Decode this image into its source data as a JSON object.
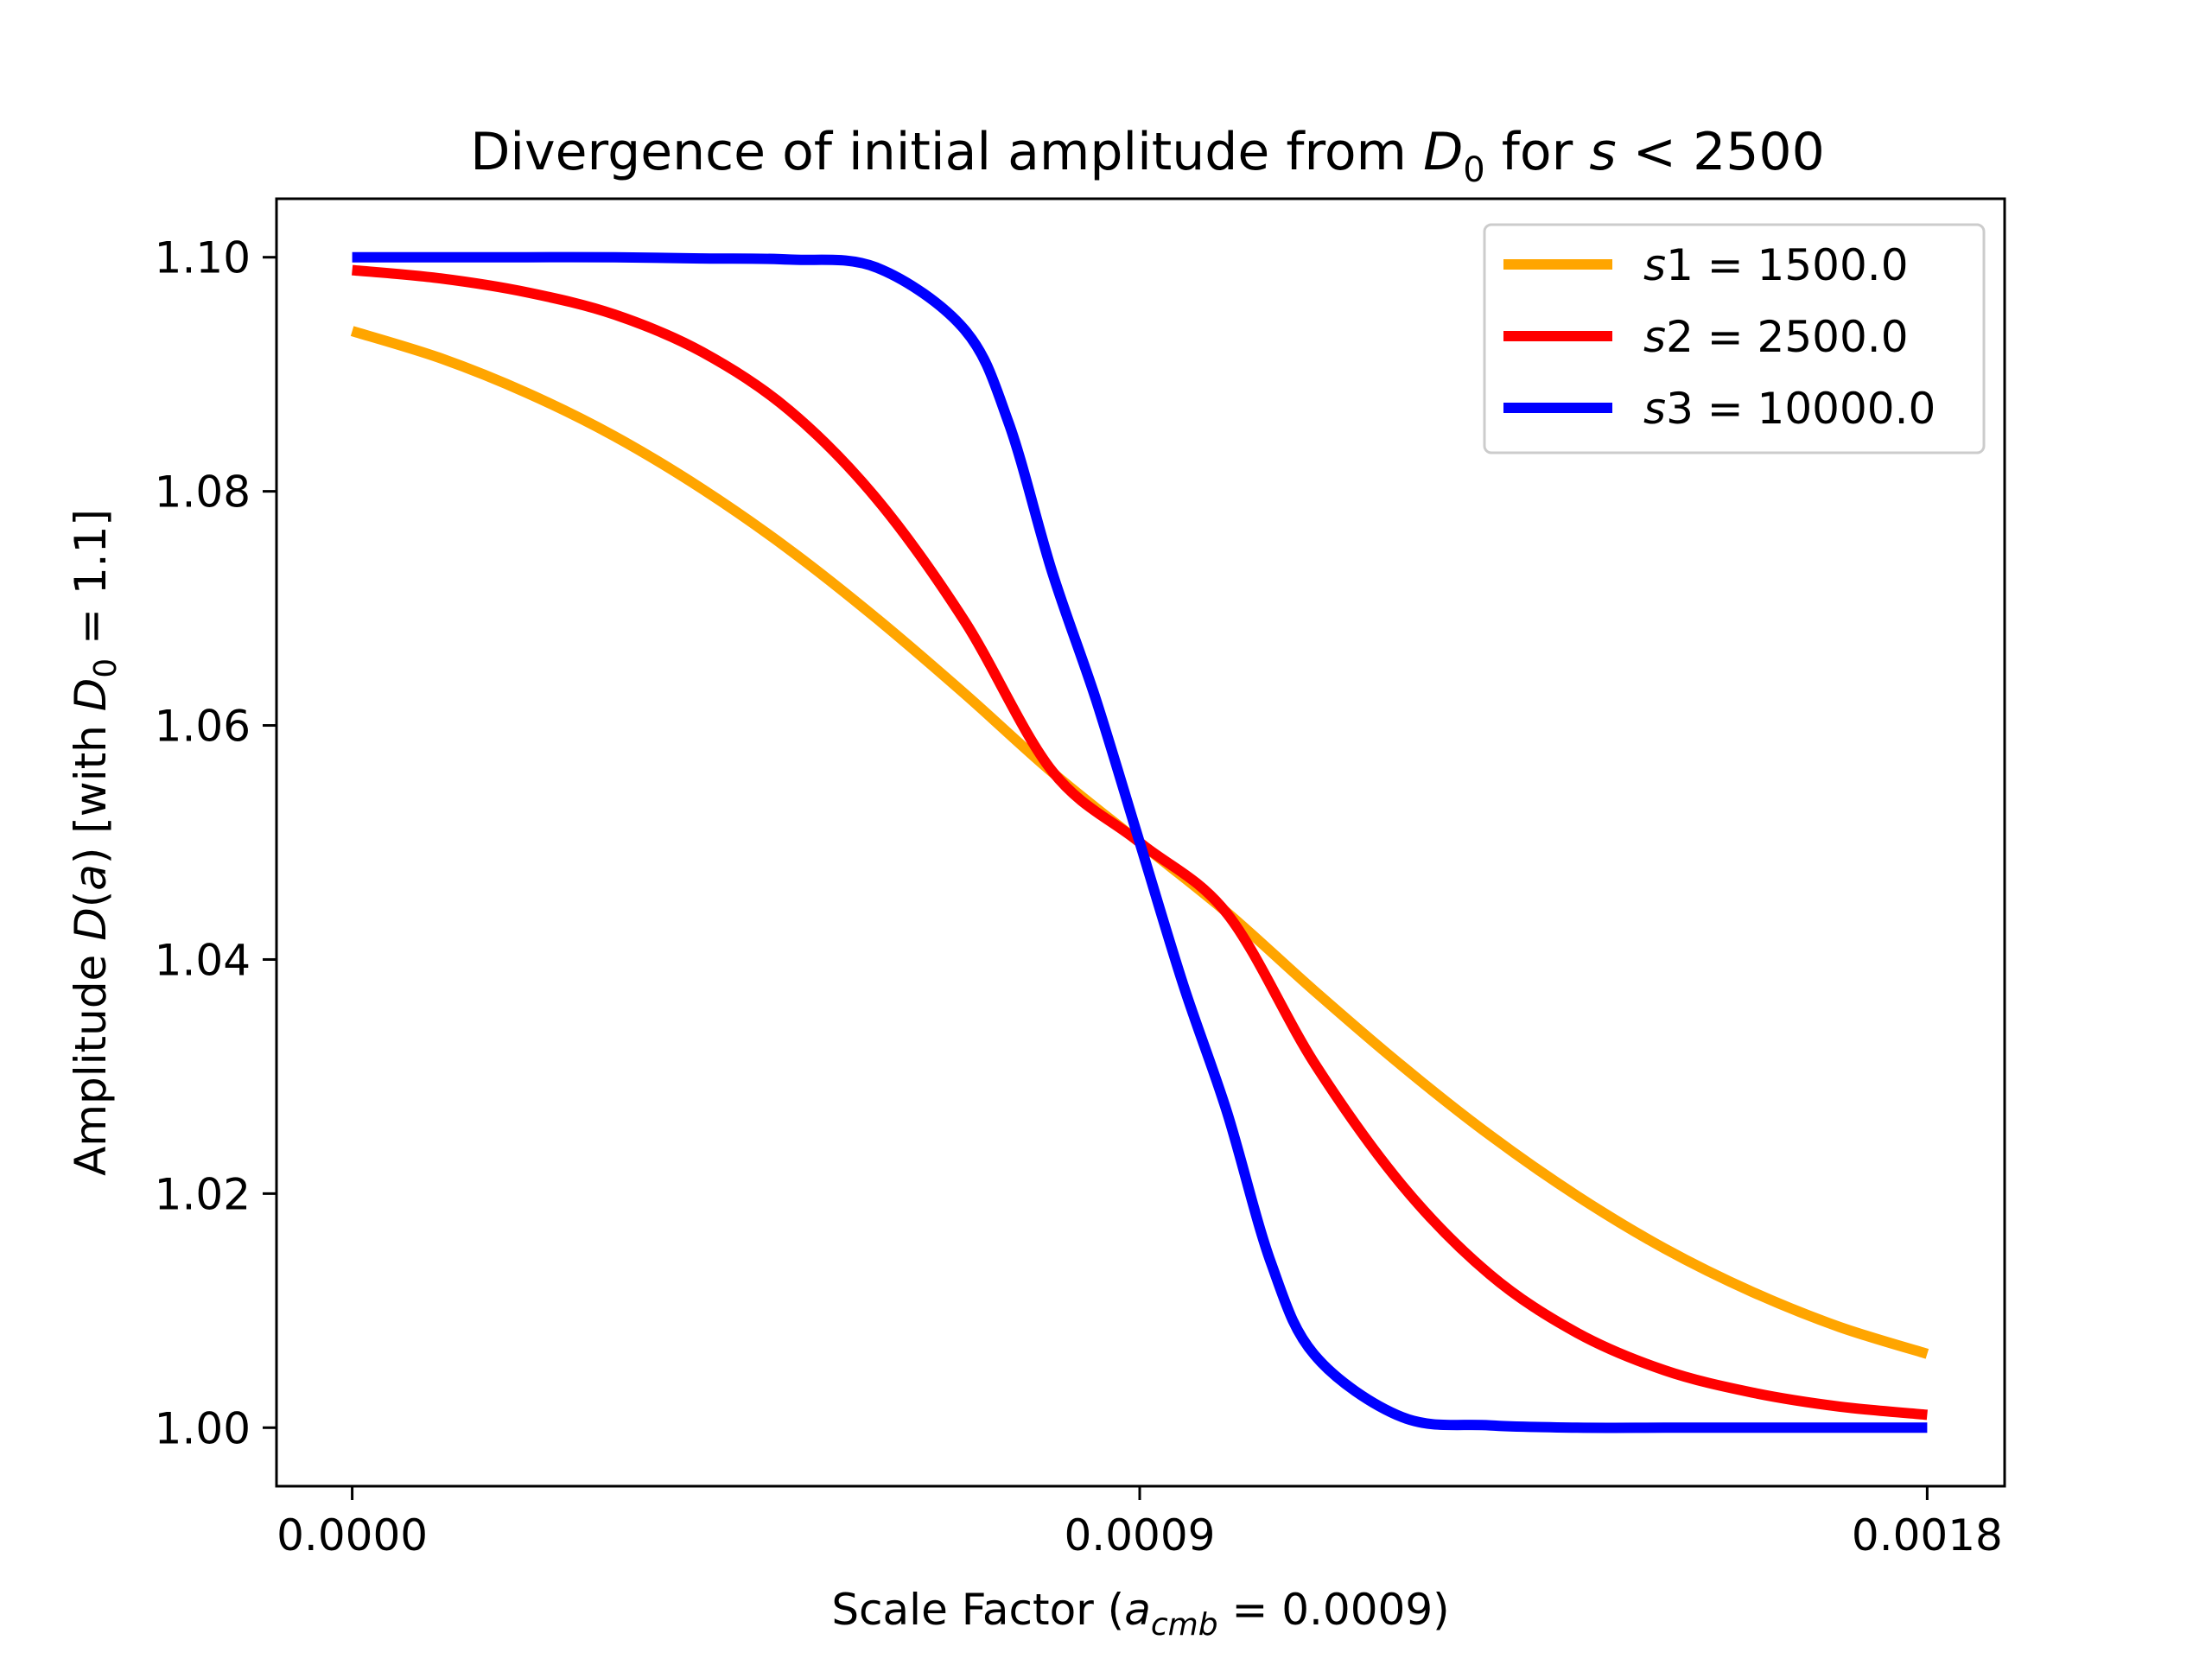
{
  "chart_data": {
    "type": "line",
    "title": {
      "pre": "Divergence of initial amplitude from ",
      "d": "D",
      "d_sub": "0",
      "mid": " for ",
      "s": "s",
      "post": " < 2500"
    },
    "xlabel": {
      "pre": "Scale Factor (",
      "a": "a",
      "a_sub": "cmb",
      "post": "  =  0.0009)"
    },
    "ylabel": {
      "pre": "Amplitude ",
      "d": "D",
      "open": "(",
      "a": "a",
      "close": ") [with ",
      "d0": "D",
      "d0_sub": "0",
      "post": " = 1.1]"
    },
    "xlim": [
      -8.65e-05,
      0.0018885
    ],
    "ylim": [
      0.995,
      1.105
    ],
    "x_ticks": [
      0.0,
      0.0009,
      0.0018
    ],
    "x_tick_labels": [
      "0.0000",
      "0.0009",
      "0.0018"
    ],
    "y_ticks": [
      1.0,
      1.02,
      1.04,
      1.06,
      1.08,
      1.1
    ],
    "y_tick_labels": [
      "1.00",
      "1.02",
      "1.04",
      "1.06",
      "1.08",
      "1.10"
    ],
    "legend_position": "top-right",
    "grid": false,
    "series": [
      {
        "name": "s1 = 1500.0",
        "name_italic": "s",
        "name_rest": "1 = 1500.0",
        "color": "#ffa500",
        "x": [
          0.0,
          0.0001,
          0.0002,
          0.0003,
          0.0004,
          0.0005,
          0.0006,
          0.0007,
          0.0008,
          0.0009,
          0.001,
          0.0011,
          0.0012,
          0.0013,
          0.0014,
          0.0015,
          0.0016,
          0.0017,
          0.0018
        ],
        "y": [
          1.0937,
          1.0914,
          1.0884,
          1.0847,
          1.0802,
          1.075,
          1.0691,
          1.0627,
          1.056,
          1.05,
          1.044,
          1.0373,
          1.0309,
          1.025,
          1.0198,
          1.0153,
          1.0116,
          1.0086,
          1.0063
        ]
      },
      {
        "name": "s2 = 2500.0",
        "name_italic": "s",
        "name_rest": "2 = 2500.0",
        "color": "#ff0000",
        "x": [
          0.0,
          0.0001,
          0.0002,
          0.0003,
          0.0004,
          0.0005,
          0.0006,
          0.0007,
          0.0008,
          0.0009,
          0.001,
          0.0011,
          0.0012,
          0.0013,
          0.0014,
          0.0015,
          0.0016,
          0.0017,
          0.0018
        ],
        "y": [
          1.0989,
          1.0982,
          1.097,
          1.0951,
          1.0919,
          1.0869,
          1.0793,
          1.0689,
          1.0561,
          1.05,
          1.0439,
          1.0311,
          1.0207,
          1.0131,
          1.0081,
          1.0049,
          1.003,
          1.0018,
          1.0011
        ]
      },
      {
        "name": "s3 = 10000.0",
        "name_italic": "s",
        "name_rest": "3 = 10000.0",
        "color": "#0000ff",
        "x": [
          0.0,
          0.0001,
          0.0002,
          0.0003,
          0.0004,
          0.0005,
          0.0006,
          0.0007,
          0.00075,
          0.0008,
          0.00085,
          0.0009,
          0.00095,
          0.001,
          0.00105,
          0.0011,
          0.0012,
          0.0013,
          0.0014,
          0.0015,
          0.0016,
          0.0017,
          0.0018
        ],
        "y": [
          1.1,
          1.1,
          1.1,
          1.1,
          1.0999,
          1.0998,
          1.0991,
          1.0938,
          1.0859,
          1.0731,
          1.0622,
          1.05,
          1.0378,
          1.0269,
          1.0141,
          1.0062,
          1.0009,
          1.0002,
          1.0,
          1.0,
          1.0,
          1.0,
          1.0
        ]
      }
    ]
  }
}
